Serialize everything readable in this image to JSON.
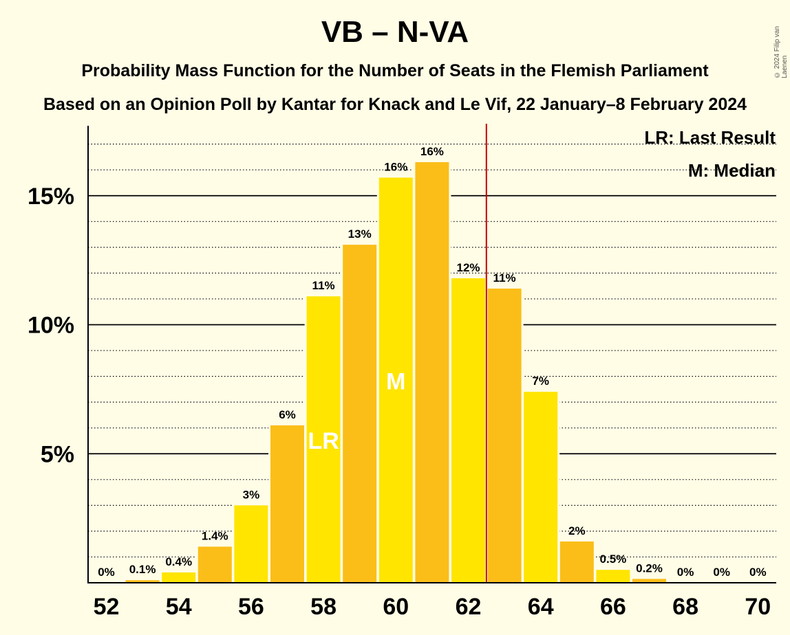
{
  "title": "VB – N-VA",
  "subtitle1": "Probability Mass Function for the Number of Seats in the Flemish Parliament",
  "subtitle2": "Based on an Opinion Poll by Kantar for Knack and Le Vif, 22 January–8 February 2024",
  "copyright": "© 2024 Filip van Laenen",
  "legend": {
    "lr": "LR: Last Result",
    "m": "M: Median"
  },
  "colors": {
    "background": "#FFFDE6",
    "bar_a": "#FFE500",
    "bar_b": "#FBBE18",
    "majority_line": "#CC0000"
  },
  "chart_data": {
    "type": "bar",
    "title": "VB – N-VA",
    "xlabel": "",
    "ylabel": "",
    "categories": [
      52,
      53,
      54,
      55,
      56,
      57,
      58,
      59,
      60,
      61,
      62,
      63,
      64,
      65,
      66,
      67,
      68,
      69,
      70
    ],
    "x_tick_labels": [
      "52",
      "54",
      "56",
      "58",
      "60",
      "62",
      "64",
      "66",
      "68",
      "70"
    ],
    "x_ticks": [
      52,
      54,
      56,
      58,
      60,
      62,
      64,
      66,
      68,
      70
    ],
    "values": [
      0,
      0.1,
      0.4,
      1.4,
      3.0,
      6.1,
      11.1,
      13.1,
      15.7,
      16.3,
      11.8,
      11.4,
      7.4,
      1.6,
      0.5,
      0.15,
      0,
      0,
      0
    ],
    "data_labels": [
      "0%",
      "0.1%",
      "0.4%",
      "1.4%",
      "3%",
      "6%",
      "11%",
      "13%",
      "16%",
      "16%",
      "12%",
      "11%",
      "7%",
      "2%",
      "0.5%",
      "0.2%",
      "0%",
      "0%",
      "0%"
    ],
    "y_ticks": [
      5,
      10,
      15
    ],
    "y_tick_labels": [
      "5%",
      "10%",
      "15%"
    ],
    "ylim": [
      0,
      17.7
    ],
    "minor_grid_step": 1,
    "majority_line_x": 62.5,
    "last_result_seat": 58,
    "last_result_label": "LR",
    "median_seat": 60,
    "median_label": "M",
    "legend_position": "top-right"
  }
}
